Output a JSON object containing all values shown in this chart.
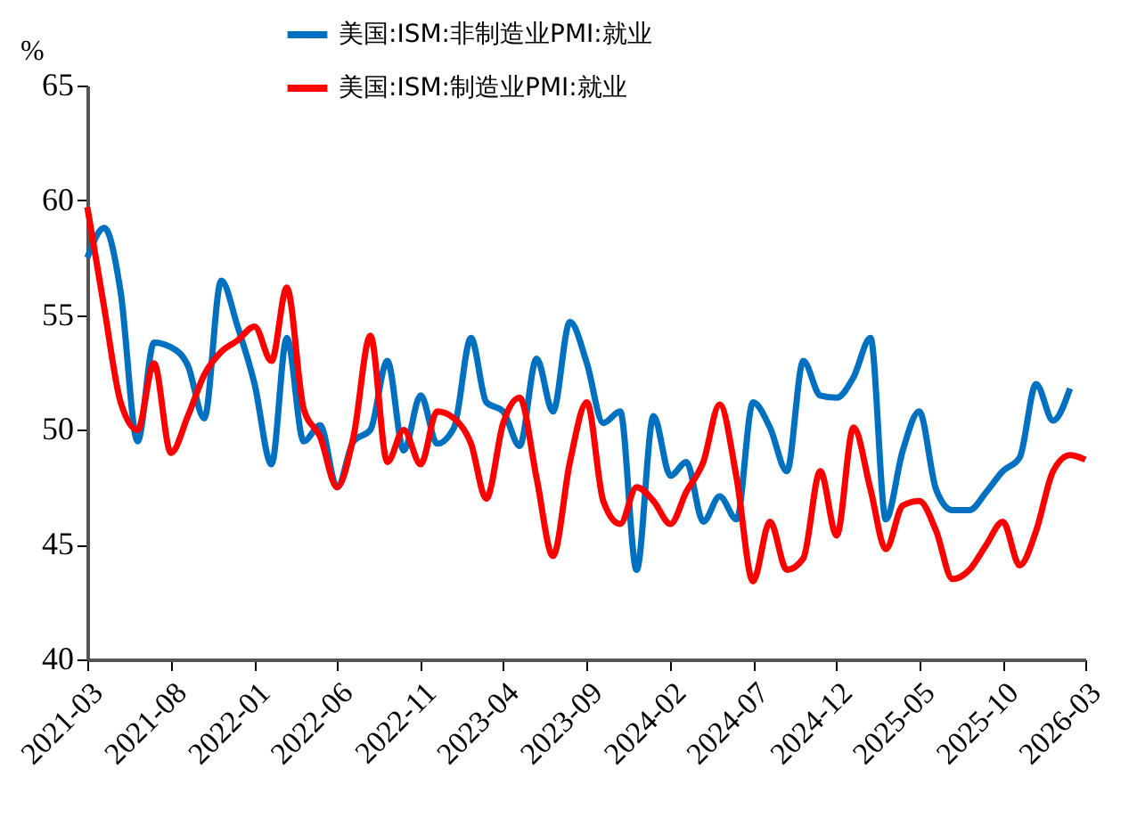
{
  "chart_data": {
    "type": "line",
    "ylabel": "%",
    "x": [
      "2021-03",
      "2021-04",
      "2021-05",
      "2021-06",
      "2021-07",
      "2021-08",
      "2021-09",
      "2021-10",
      "2021-11",
      "2021-12",
      "2022-01",
      "2022-02",
      "2022-03",
      "2022-04",
      "2022-05",
      "2022-06",
      "2022-07",
      "2022-08",
      "2022-09",
      "2022-10",
      "2022-11",
      "2022-12",
      "2023-01",
      "2023-02",
      "2023-03",
      "2023-04",
      "2023-05",
      "2023-06",
      "2023-07",
      "2023-08",
      "2023-09",
      "2023-10",
      "2023-11",
      "2023-12",
      "2024-01",
      "2024-02",
      "2024-03",
      "2024-04",
      "2024-05",
      "2024-06",
      "2024-07",
      "2024-08",
      "2024-09",
      "2024-10",
      "2024-11",
      "2024-12",
      "2025-01",
      "2025-02",
      "2025-03",
      "2025-04",
      "2025-05",
      "2025-06",
      "2025-07",
      "2025-08",
      "2025-09",
      "2025-10",
      "2025-11",
      "2025-12",
      "2026-01",
      "2026-02",
      "2026-03"
    ],
    "series": [
      {
        "name": "美国:ISM:非制造业PMI:就业",
        "color": "#0070c0",
        "values": [
          57.5,
          58.8,
          56.0,
          49.5,
          53.8,
          53.6,
          52.8,
          50.5,
          56.5,
          54.5,
          52.0,
          48.5,
          54.0,
          49.5,
          50.2,
          47.5,
          49.5,
          50.0,
          53.0,
          49.1,
          51.5,
          49.4,
          50.1,
          54.0,
          51.2,
          50.8,
          49.3,
          53.1,
          50.8,
          54.7,
          52.9,
          50.3,
          50.8,
          43.9,
          50.6,
          48.0,
          48.6,
          46.0,
          47.1,
          46.1,
          51.2,
          50.1,
          48.2,
          53.0,
          51.5,
          51.4,
          52.3,
          54.0,
          46.1,
          49.1,
          50.8,
          47.4,
          46.5,
          46.5,
          47.3,
          48.2,
          48.8,
          52.0,
          50.4,
          51.8,
          null
        ]
      },
      {
        "name": "美国:ISM:制造业PMI:就业",
        "color": "#ff0000",
        "values": [
          59.7,
          55.3,
          51.2,
          50.0,
          52.9,
          49.0,
          50.6,
          52.4,
          53.4,
          53.9,
          54.5,
          53.0,
          56.2,
          50.9,
          49.7,
          47.5,
          49.7,
          54.1,
          48.6,
          50.0,
          48.5,
          50.8,
          50.5,
          49.4,
          47.0,
          50.3,
          51.4,
          47.9,
          44.5,
          48.6,
          51.2,
          46.9,
          45.9,
          47.5,
          46.9,
          45.9,
          47.3,
          48.6,
          51.1,
          47.9,
          43.4,
          46.0,
          43.9,
          44.4,
          48.2,
          45.4,
          50.1,
          47.4,
          44.8,
          46.7,
          46.9,
          45.6,
          43.5,
          43.9,
          45.0,
          46.0,
          44.1,
          45.6,
          48.2,
          48.9,
          48.7
        ]
      }
    ],
    "xlim": [
      "2021-03",
      "2026-03"
    ],
    "xticks": [
      "2021-03",
      "2021-08",
      "2022-01",
      "2022-06",
      "2022-11",
      "2023-04",
      "2023-09",
      "2024-02",
      "2024-07",
      "2024-12",
      "2025-05",
      "2025-10",
      "2026-03"
    ],
    "ylim": [
      40,
      65
    ],
    "yticks": [
      40,
      45,
      50,
      55,
      60,
      65
    ],
    "grid": false,
    "legend": "top",
    "line_style": "solid",
    "marker": "none"
  }
}
